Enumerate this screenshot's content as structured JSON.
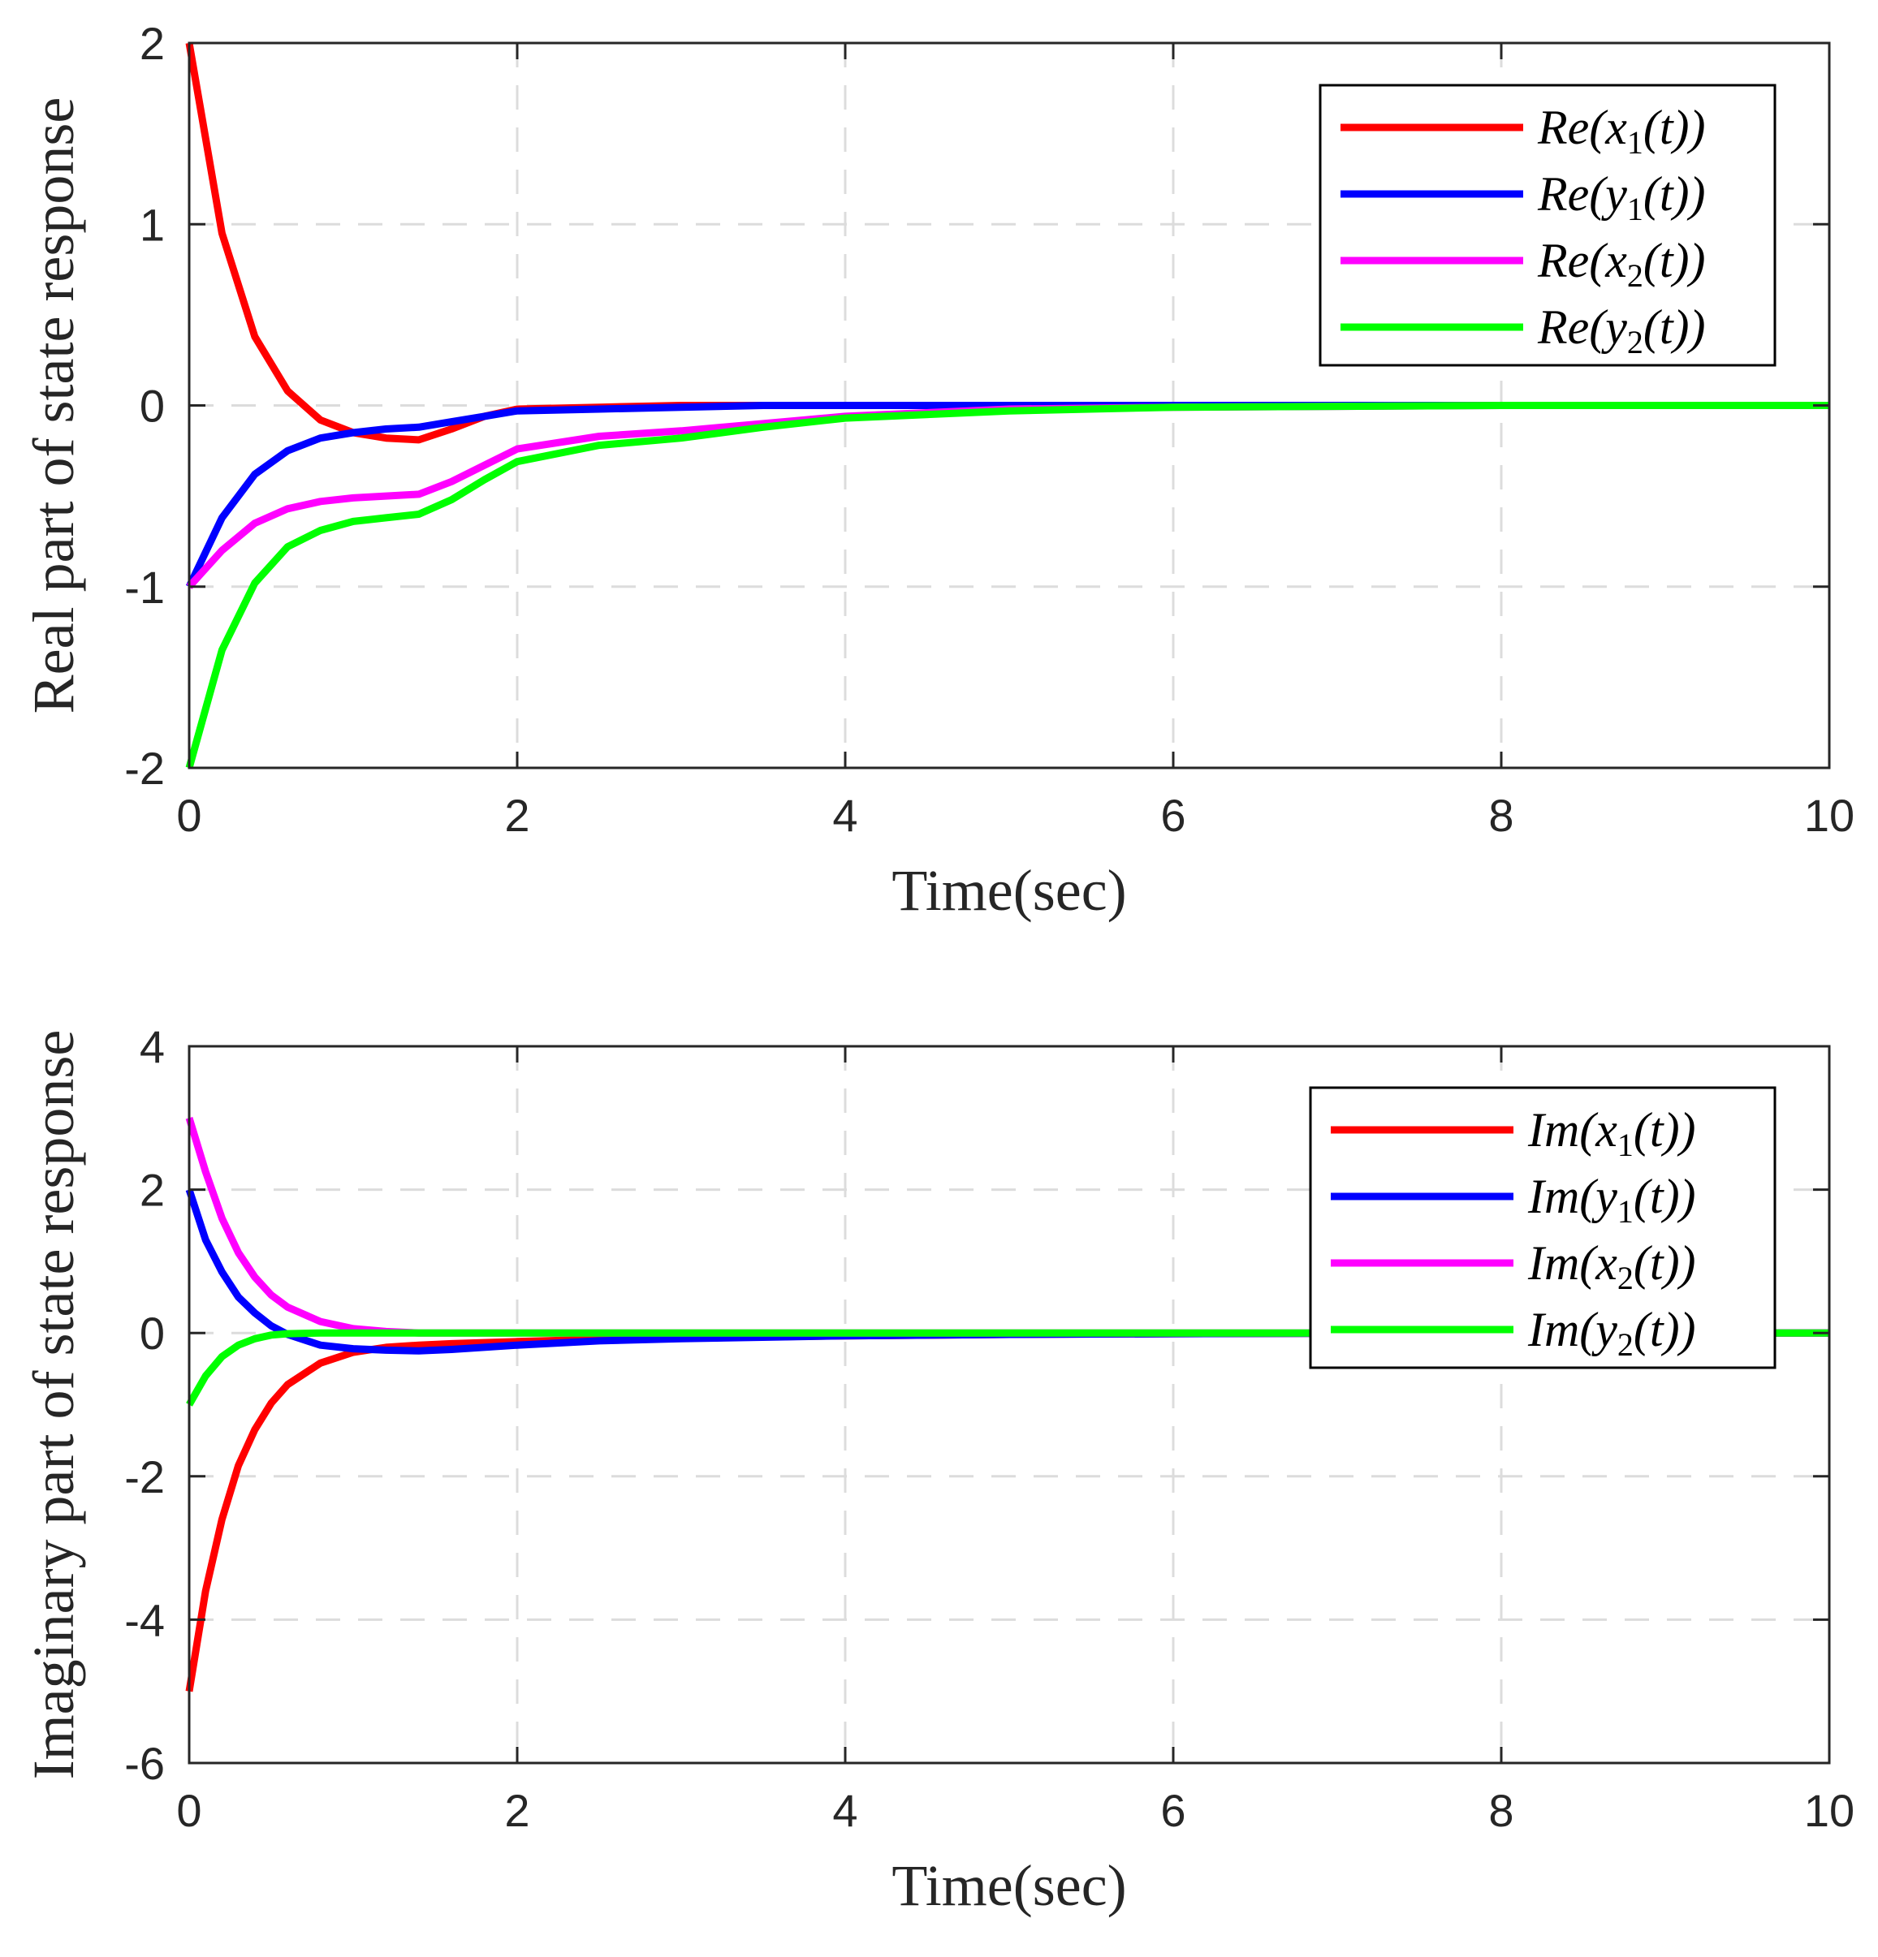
{
  "chart_data": [
    {
      "type": "line",
      "title": "",
      "xlabel": "Time(sec)",
      "ylabel": "Real part of state response",
      "xlim": [
        0,
        10
      ],
      "ylim": [
        -2,
        2
      ],
      "xticks": [
        "0",
        "2",
        "4",
        "6",
        "8",
        "10"
      ],
      "yticks": [
        "-2",
        "-1",
        "0",
        "1",
        "2"
      ],
      "grid": true,
      "legend_position": "top-right",
      "x": [
        0,
        0.2,
        0.4,
        0.6,
        0.8,
        1.0,
        1.2,
        1.4,
        1.6,
        1.8,
        2.0,
        2.5,
        3.0,
        3.5,
        4.0,
        5.0,
        6.0,
        8.0,
        10.0
      ],
      "series": [
        {
          "name": "Re(x1(t))",
          "math": [
            "Re(x",
            "1",
            "(t))"
          ],
          "color": "#ff0000",
          "values": [
            2.0,
            0.95,
            0.38,
            0.08,
            -0.08,
            -0.15,
            -0.18,
            -0.19,
            -0.13,
            -0.06,
            -0.02,
            -0.01,
            0.0,
            0.0,
            0.0,
            0.0,
            0.0,
            0.0,
            0.0
          ]
        },
        {
          "name": "Re(y1(t))",
          "math": [
            "Re(y",
            "1",
            "(t))"
          ],
          "color": "#0000ff",
          "values": [
            -1.0,
            -0.62,
            -0.38,
            -0.25,
            -0.18,
            -0.15,
            -0.13,
            -0.12,
            -0.09,
            -0.06,
            -0.03,
            -0.02,
            -0.01,
            0.0,
            0.0,
            0.0,
            0.0,
            0.0,
            0.0
          ]
        },
        {
          "name": "Re(x2(t))",
          "math": [
            "Re(x",
            "2",
            "(t))"
          ],
          "color": "#ff00ff",
          "values": [
            -1.0,
            -0.8,
            -0.65,
            -0.57,
            -0.53,
            -0.51,
            -0.5,
            -0.49,
            -0.42,
            -0.33,
            -0.24,
            -0.17,
            -0.14,
            -0.1,
            -0.06,
            -0.02,
            -0.01,
            0.0,
            0.0
          ]
        },
        {
          "name": "Re(y2(t))",
          "math": [
            "Re(y",
            "2",
            "(t))"
          ],
          "color": "#00ff00",
          "values": [
            -2.0,
            -1.35,
            -0.98,
            -0.78,
            -0.69,
            -0.64,
            -0.62,
            -0.6,
            -0.52,
            -0.41,
            -0.31,
            -0.22,
            -0.18,
            -0.12,
            -0.07,
            -0.03,
            -0.01,
            0.0,
            0.0
          ]
        }
      ]
    },
    {
      "type": "line",
      "title": "",
      "xlabel": "Time(sec)",
      "ylabel": "Imaginary part of state response",
      "xlim": [
        0,
        10
      ],
      "ylim": [
        -6,
        4
      ],
      "xticks": [
        "0",
        "2",
        "4",
        "6",
        "8",
        "10"
      ],
      "yticks": [
        "-6",
        "-4",
        "-2",
        "0",
        "2",
        "4"
      ],
      "grid": true,
      "legend_position": "top-right",
      "x": [
        0,
        0.1,
        0.2,
        0.3,
        0.4,
        0.5,
        0.6,
        0.8,
        1.0,
        1.2,
        1.4,
        1.6,
        2.0,
        2.5,
        3.0,
        4.0,
        5.0,
        6.0,
        8.0,
        10.0
      ],
      "series": [
        {
          "name": "Im(x1(t))",
          "math": [
            "Im(x",
            "1",
            "(t))"
          ],
          "color": "#ff0000",
          "values": [
            -5.0,
            -3.6,
            -2.6,
            -1.85,
            -1.35,
            -0.98,
            -0.72,
            -0.42,
            -0.27,
            -0.2,
            -0.17,
            -0.15,
            -0.12,
            -0.09,
            -0.07,
            -0.04,
            -0.02,
            -0.01,
            0.0,
            0.0
          ]
        },
        {
          "name": "Im(y1(t))",
          "math": [
            "Im(y",
            "1",
            "(t))"
          ],
          "color": "#0000ff",
          "values": [
            2.0,
            1.3,
            0.85,
            0.5,
            0.28,
            0.1,
            -0.02,
            -0.17,
            -0.22,
            -0.24,
            -0.25,
            -0.23,
            -0.17,
            -0.11,
            -0.08,
            -0.04,
            -0.02,
            -0.01,
            0.0,
            0.0
          ]
        },
        {
          "name": "Im(x2(t))",
          "math": [
            "Im(x",
            "2",
            "(t))"
          ],
          "color": "#ff00ff",
          "values": [
            3.0,
            2.25,
            1.6,
            1.12,
            0.78,
            0.53,
            0.36,
            0.16,
            0.06,
            0.02,
            0.0,
            0.0,
            0.0,
            0.0,
            0.0,
            0.0,
            0.0,
            0.0,
            0.0,
            0.0
          ]
        },
        {
          "name": "Im(y2(t))",
          "math": [
            "Im(y",
            "2",
            "(t))"
          ],
          "color": "#00ff00",
          "values": [
            -1.0,
            -0.6,
            -0.33,
            -0.17,
            -0.08,
            -0.03,
            -0.01,
            0.0,
            0.0,
            0.0,
            0.0,
            0.0,
            0.0,
            0.0,
            0.0,
            0.0,
            0.0,
            0.0,
            0.0,
            0.0
          ]
        }
      ]
    }
  ]
}
